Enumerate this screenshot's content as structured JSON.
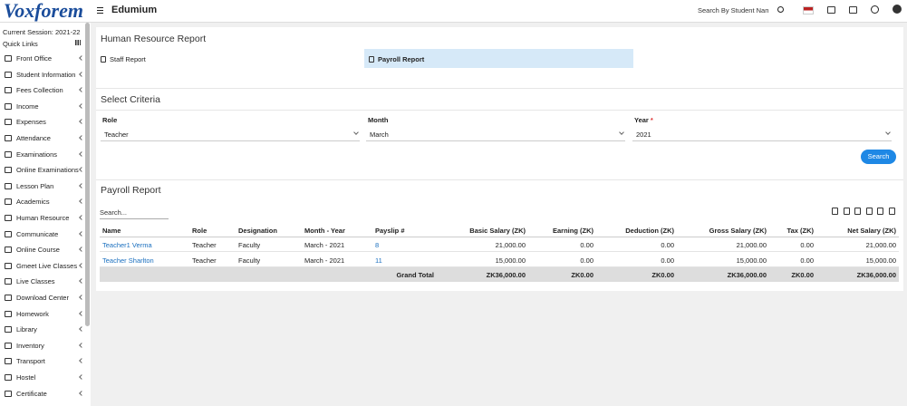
{
  "header": {
    "logo": "Voxforem",
    "app_name": "Edumium",
    "search_placeholder": "Search By Student Name"
  },
  "sidebar": {
    "session": "Current Session: 2021-22",
    "quick_links": "Quick Links",
    "menu": [
      "Front Office",
      "Student Information",
      "Fees Collection",
      "Income",
      "Expenses",
      "Attendance",
      "Examinations",
      "Online Examinations",
      "Lesson Plan",
      "Academics",
      "Human Resource",
      "Communicate",
      "Online Course",
      "Gmeet Live Classes",
      "Live Classes",
      "Download Center",
      "Homework",
      "Library",
      "Inventory",
      "Transport",
      "Hostel",
      "Certificate"
    ]
  },
  "report": {
    "title": "Human Resource Report",
    "tabs": [
      "Staff Report",
      "Payroll Report"
    ]
  },
  "criteria": {
    "title": "Select Criteria",
    "fields": [
      {
        "label": "Role",
        "value": "Teacher"
      },
      {
        "label": "Month",
        "value": "March"
      },
      {
        "label": "Year",
        "value": "2021",
        "required": "*"
      }
    ],
    "button": "Search"
  },
  "payroll": {
    "title": "Payroll Report",
    "search_placeholder": "Search...",
    "table": {
      "headers": [
        "Name",
        "Role",
        "Designation",
        "Month - Year",
        "Payslip #",
        "Basic Salary (ZK)",
        "Earning (ZK)",
        "Deduction (ZK)",
        "Gross Salary (ZK)",
        "Tax (ZK)",
        "Net Salary (ZK)"
      ],
      "rows": [
        [
          "Teacher1 Verma",
          "Teacher",
          "Faculty",
          "March - 2021",
          "8",
          "21,000.00",
          "0.00",
          "0.00",
          "21,000.00",
          "0.00",
          "21,000.00"
        ],
        [
          "Teacher Sharlton",
          "Teacher",
          "Faculty",
          "March - 2021",
          "11",
          "15,000.00",
          "0.00",
          "0.00",
          "15,000.00",
          "0.00",
          "15,000.00"
        ]
      ],
      "grand_total": {
        "label": "Grand Total",
        "values": [
          "ZK36,000.00",
          "ZK0.00",
          "ZK0.00",
          "ZK36,000.00",
          "ZK0.00",
          "ZK36,000.00"
        ]
      }
    }
  }
}
